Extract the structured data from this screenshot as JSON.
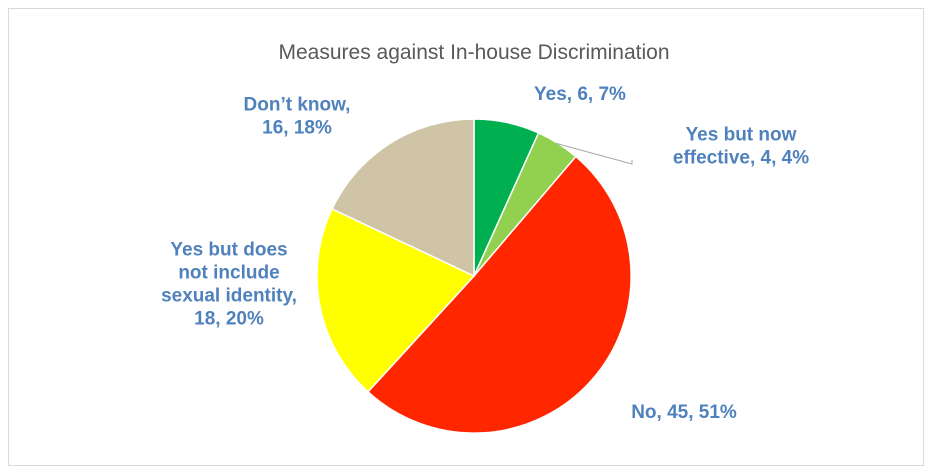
{
  "chart_data": {
    "type": "pie",
    "title": "Measures against In-house Discrimination",
    "slices": [
      {
        "label": "Yes",
        "value": 6,
        "percent": "7%",
        "color": "#00b050",
        "label_lines": [
          "Yes, 6, 7%"
        ]
      },
      {
        "label": "Yes but now effective",
        "value": 4,
        "percent": "4%",
        "color": "#92d050",
        "label_lines": [
          "Yes but now",
          "effective, 4, 4%"
        ]
      },
      {
        "label": "No",
        "value": 45,
        "percent": "51%",
        "color": "#ff2600",
        "label_lines": [
          "No, 45, 51%"
        ]
      },
      {
        "label": "Yes but does not include sexual identity",
        "value": 18,
        "percent": "20%",
        "color": "#ffff00",
        "label_lines": [
          "Yes but does",
          "not include",
          "sexual identity,",
          "18, 20%"
        ]
      },
      {
        "label": "Don’t know",
        "value": 16,
        "percent": "18%",
        "color": "#cfc5a6",
        "label_lines": [
          "Don’t know,",
          "16, 18%"
        ]
      }
    ],
    "legend": "none",
    "label_color": "#4f81bd"
  }
}
